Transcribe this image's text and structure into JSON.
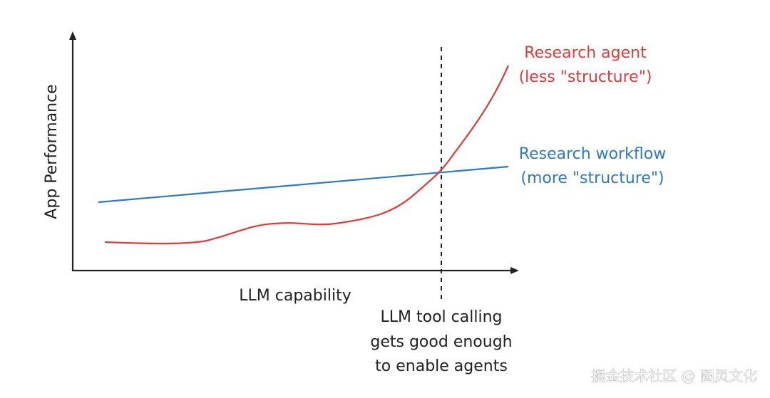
{
  "diagram": {
    "y_axis_label": "App Performance",
    "x_axis_label": "LLM capability",
    "threshold_annotation": [
      "LLM tool calling",
      "gets good enough",
      "to enable agents"
    ],
    "series": [
      {
        "name": "Research agent",
        "label_lines": [
          "Research agent",
          "(less \"structure\")"
        ],
        "color": "#e03b3b",
        "trend": "flat then rises sharply after threshold"
      },
      {
        "name": "Research workflow",
        "label_lines": [
          "Research workflow",
          "(more \"structure\")"
        ],
        "color": "#2f78c4",
        "trend": "steady linear increase"
      }
    ],
    "watermark": "掘金技术社区 @ 图灵文化"
  },
  "colors": {
    "axis": "#222222",
    "text": "#222222",
    "watermark": "#ffffff"
  }
}
